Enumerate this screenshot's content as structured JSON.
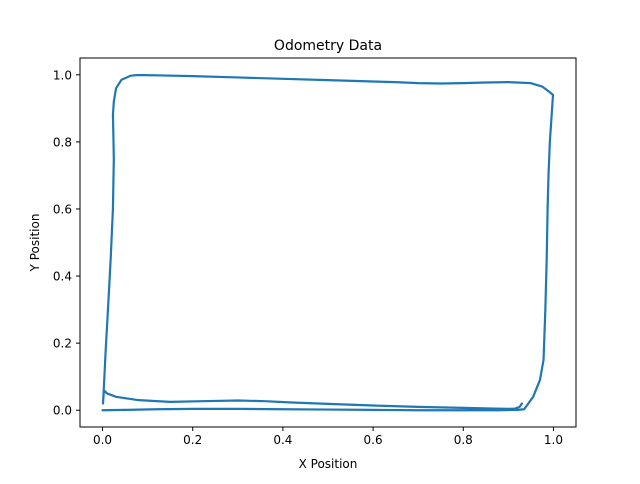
{
  "chart_data": {
    "type": "line",
    "title": "Odometry Data",
    "xlabel": "X Position",
    "ylabel": "Y Position",
    "xlim": [
      -0.05,
      1.05
    ],
    "ylim": [
      -0.05,
      1.05
    ],
    "x_ticks": [
      0.0,
      0.2,
      0.4,
      0.6,
      0.8,
      1.0
    ],
    "y_ticks": [
      0.0,
      0.2,
      0.4,
      0.6,
      0.8,
      1.0
    ],
    "x_tick_labels": [
      "0.0",
      "0.2",
      "0.4",
      "0.6",
      "0.8",
      "1.0"
    ],
    "y_tick_labels": [
      "0.0",
      "0.2",
      "0.4",
      "0.6",
      "0.8",
      "1.0"
    ],
    "grid": false,
    "series": [
      {
        "color": "#1f77b4",
        "x": [
          0.0,
          0.05,
          0.12,
          0.2,
          0.3,
          0.4,
          0.5,
          0.6,
          0.7,
          0.8,
          0.88,
          0.92,
          0.935,
          0.955,
          0.97,
          0.978,
          0.982,
          0.985,
          0.987,
          0.989,
          0.992,
          0.996,
          0.999,
          0.99,
          0.975,
          0.95,
          0.9,
          0.85,
          0.8,
          0.75,
          0.7,
          0.65,
          0.6,
          0.5,
          0.4,
          0.3,
          0.2,
          0.13,
          0.09,
          0.075,
          0.068,
          0.062,
          0.042,
          0.03,
          0.025,
          0.023,
          0.024,
          0.025,
          0.023,
          0.018,
          0.012,
          0.007,
          0.003,
          0.001,
          0.003,
          0.01,
          0.03,
          0.08,
          0.15,
          0.22,
          0.3,
          0.36,
          0.42,
          0.5,
          0.6,
          0.7,
          0.8,
          0.87,
          0.9,
          0.915,
          0.925,
          0.93
        ],
        "y": [
          0.0,
          0.001,
          0.003,
          0.004,
          0.004,
          0.003,
          0.002,
          0.001,
          0.0,
          0.0,
          0.0,
          0.001,
          0.003,
          0.04,
          0.09,
          0.15,
          0.3,
          0.45,
          0.6,
          0.7,
          0.8,
          0.88,
          0.94,
          0.95,
          0.965,
          0.975,
          0.978,
          0.977,
          0.975,
          0.974,
          0.975,
          0.978,
          0.98,
          0.984,
          0.988,
          0.992,
          0.996,
          0.998,
          0.999,
          0.999,
          0.998,
          0.997,
          0.985,
          0.96,
          0.92,
          0.88,
          0.82,
          0.75,
          0.6,
          0.45,
          0.3,
          0.18,
          0.07,
          0.02,
          0.06,
          0.05,
          0.04,
          0.03,
          0.025,
          0.027,
          0.029,
          0.027,
          0.023,
          0.019,
          0.014,
          0.01,
          0.007,
          0.005,
          0.004,
          0.005,
          0.01,
          0.02
        ]
      }
    ]
  }
}
